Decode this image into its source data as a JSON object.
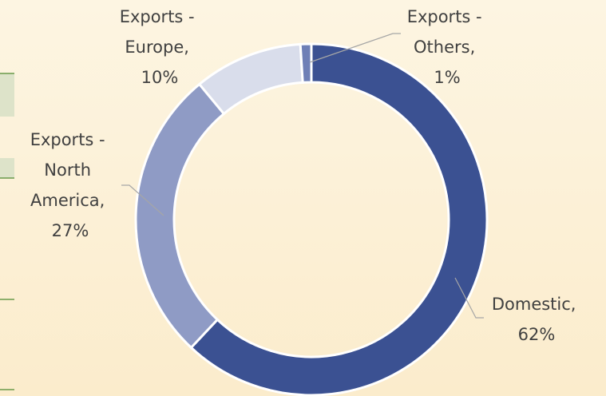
{
  "chart_data": {
    "type": "donut",
    "categories": [
      "Domestic",
      "Exports - North America",
      "Exports - Europe",
      "Exports - Others"
    ],
    "values": [
      62,
      27,
      10,
      1
    ],
    "value_labels": [
      "Domestic, 62%",
      "Exports - North America, 27%",
      "Exports - Europe, 10%",
      "Exports - Others, 1%"
    ],
    "colors": [
      "#3b5192",
      "#8f9bc5",
      "#d9ddeb",
      "#6e7fb6"
    ]
  }
}
